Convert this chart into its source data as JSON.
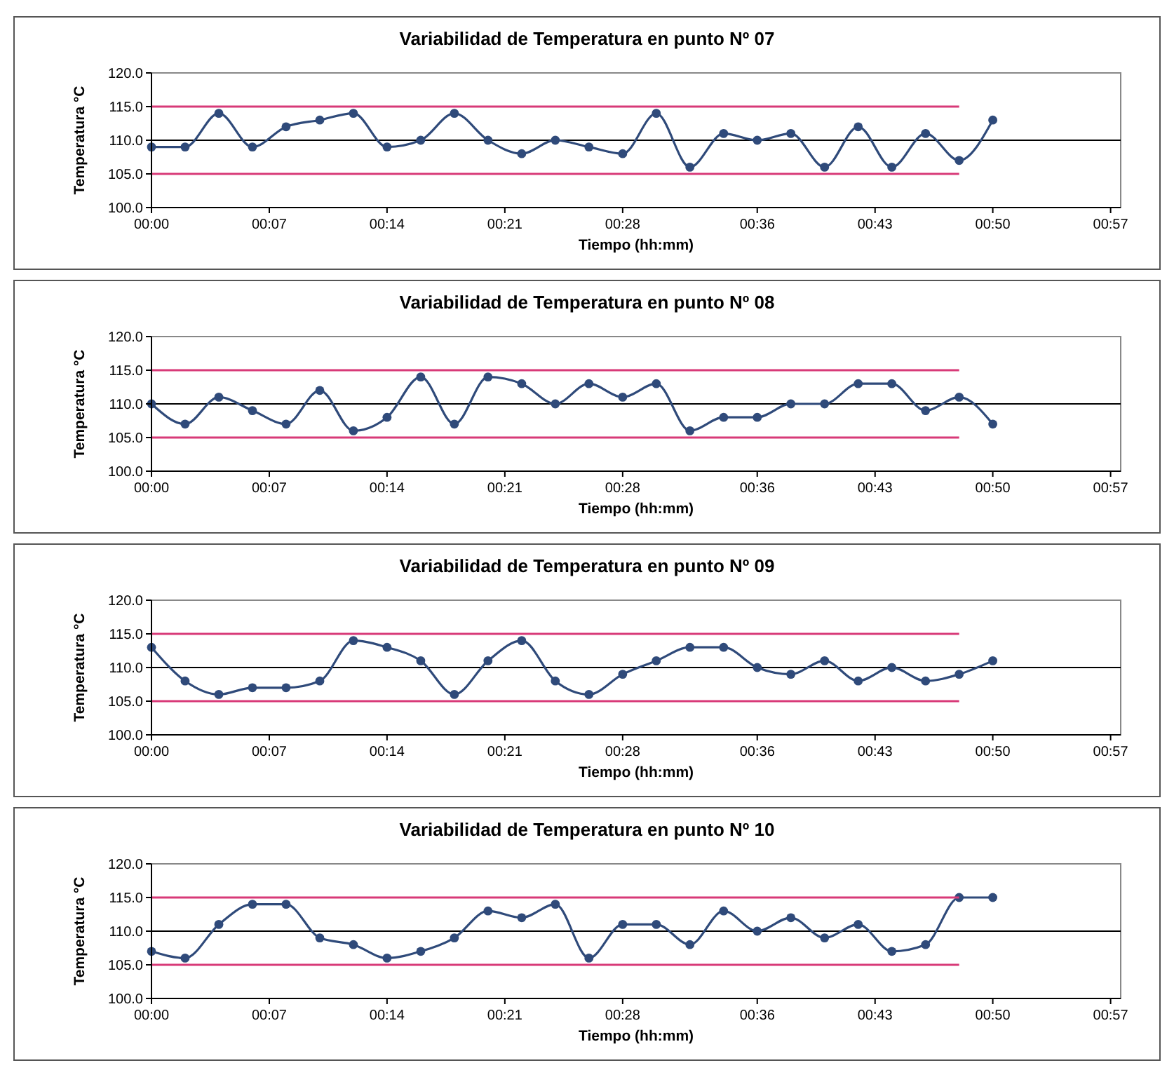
{
  "chart_data": [
    {
      "type": "line",
      "title": "Variabilidad de Temperatura en punto Nº 07",
      "xlabel": "Tiempo  (hh:mm)",
      "ylabel": "Temperatura °C",
      "xlim": [
        0,
        0.96
      ],
      "xticks": [
        {
          "value": 0,
          "label": "00:00"
        },
        {
          "value": 0.1167,
          "label": "00:07"
        },
        {
          "value": 0.2333,
          "label": "00:14"
        },
        {
          "value": 0.35,
          "label": "00:21"
        },
        {
          "value": 0.4667,
          "label": "00:28"
        },
        {
          "value": 0.6,
          "label": "00:36"
        },
        {
          "value": 0.7167,
          "label": "00:43"
        },
        {
          "value": 0.8333,
          "label": "00:50"
        },
        {
          "value": 0.95,
          "label": "00:57"
        }
      ],
      "ylim": [
        100,
        120
      ],
      "yticks": [
        {
          "value": 100,
          "label": "100.0"
        },
        {
          "value": 105,
          "label": "105.0"
        },
        {
          "value": 110,
          "label": "110.0"
        },
        {
          "value": 115,
          "label": "115.0"
        },
        {
          "value": 120,
          "label": "120.0"
        }
      ],
      "ref_lines": [
        {
          "axis": "y",
          "value": 110,
          "color": "#000000"
        }
      ],
      "series": [
        {
          "color": "#2f4a7a",
          "marker": "circle",
          "x": [
            0,
            0.0333,
            0.0667,
            0.1,
            0.1333,
            0.1667,
            0.2,
            0.2333,
            0.2667,
            0.3,
            0.3333,
            0.3667,
            0.4,
            0.4333,
            0.4667,
            0.5,
            0.5333,
            0.5667,
            0.6,
            0.6333,
            0.6667,
            0.7,
            0.7333,
            0.7667,
            0.8,
            0.8333
          ],
          "values": [
            109,
            109,
            114,
            109,
            112,
            113,
            114,
            109,
            110,
            114,
            110,
            108,
            110,
            109,
            108,
            114,
            106,
            111,
            110,
            111,
            106,
            112,
            106,
            111,
            107,
            113
          ]
        },
        {
          "color": "#d83a78",
          "marker": "none",
          "x": [
            0,
            0.8
          ],
          "values": [
            115,
            115
          ]
        },
        {
          "color": "#d83a78",
          "marker": "none",
          "x": [
            0,
            0.8
          ],
          "values": [
            105,
            105
          ]
        }
      ]
    },
    {
      "type": "line",
      "title": "Variabilidad de Temperatura en punto Nº 08",
      "xlabel": "Tiempo  (hh:mm)",
      "ylabel": "Temperatura °C",
      "xlim": [
        0,
        0.96
      ],
      "xticks": [
        {
          "value": 0,
          "label": "00:00"
        },
        {
          "value": 0.1167,
          "label": "00:07"
        },
        {
          "value": 0.2333,
          "label": "00:14"
        },
        {
          "value": 0.35,
          "label": "00:21"
        },
        {
          "value": 0.4667,
          "label": "00:28"
        },
        {
          "value": 0.6,
          "label": "00:36"
        },
        {
          "value": 0.7167,
          "label": "00:43"
        },
        {
          "value": 0.8333,
          "label": "00:50"
        },
        {
          "value": 0.95,
          "label": "00:57"
        }
      ],
      "ylim": [
        100,
        120
      ],
      "yticks": [
        {
          "value": 100,
          "label": "100.0"
        },
        {
          "value": 105,
          "label": "105.0"
        },
        {
          "value": 110,
          "label": "110.0"
        },
        {
          "value": 115,
          "label": "115.0"
        },
        {
          "value": 120,
          "label": "120.0"
        }
      ],
      "ref_lines": [
        {
          "axis": "y",
          "value": 110,
          "color": "#000000"
        }
      ],
      "series": [
        {
          "color": "#2f4a7a",
          "marker": "circle",
          "x": [
            0,
            0.0333,
            0.0667,
            0.1,
            0.1333,
            0.1667,
            0.2,
            0.2333,
            0.2667,
            0.3,
            0.3333,
            0.3667,
            0.4,
            0.4333,
            0.4667,
            0.5,
            0.5333,
            0.5667,
            0.6,
            0.6333,
            0.6667,
            0.7,
            0.7333,
            0.7667,
            0.8,
            0.8333
          ],
          "values": [
            110,
            107,
            111,
            109,
            107,
            112,
            106,
            108,
            114,
            107,
            114,
            113,
            110,
            113,
            111,
            113,
            106,
            108,
            108,
            110,
            110,
            113,
            113,
            109,
            111,
            107
          ]
        },
        {
          "color": "#d83a78",
          "marker": "none",
          "x": [
            0,
            0.8
          ],
          "values": [
            115,
            115
          ]
        },
        {
          "color": "#d83a78",
          "marker": "none",
          "x": [
            0,
            0.8
          ],
          "values": [
            105,
            105
          ]
        }
      ]
    },
    {
      "type": "line",
      "title": "Variabilidad de Temperatura en punto Nº 09",
      "xlabel": "Tiempo  (hh:mm)",
      "ylabel": "Temperatura °C",
      "xlim": [
        0,
        0.96
      ],
      "xticks": [
        {
          "value": 0,
          "label": "00:00"
        },
        {
          "value": 0.1167,
          "label": "00:07"
        },
        {
          "value": 0.2333,
          "label": "00:14"
        },
        {
          "value": 0.35,
          "label": "00:21"
        },
        {
          "value": 0.4667,
          "label": "00:28"
        },
        {
          "value": 0.6,
          "label": "00:36"
        },
        {
          "value": 0.7167,
          "label": "00:43"
        },
        {
          "value": 0.8333,
          "label": "00:50"
        },
        {
          "value": 0.95,
          "label": "00:57"
        }
      ],
      "ylim": [
        100,
        120
      ],
      "yticks": [
        {
          "value": 100,
          "label": "100.0"
        },
        {
          "value": 105,
          "label": "105.0"
        },
        {
          "value": 110,
          "label": "110.0"
        },
        {
          "value": 115,
          "label": "115.0"
        },
        {
          "value": 120,
          "label": "120.0"
        }
      ],
      "ref_lines": [
        {
          "axis": "y",
          "value": 110,
          "color": "#000000"
        }
      ],
      "series": [
        {
          "color": "#2f4a7a",
          "marker": "circle",
          "x": [
            0,
            0.0333,
            0.0667,
            0.1,
            0.1333,
            0.1667,
            0.2,
            0.2333,
            0.2667,
            0.3,
            0.3333,
            0.3667,
            0.4,
            0.4333,
            0.4667,
            0.5,
            0.5333,
            0.5667,
            0.6,
            0.6333,
            0.6667,
            0.7,
            0.7333,
            0.7667,
            0.8,
            0.8333
          ],
          "values": [
            113,
            108,
            106,
            107,
            107,
            108,
            114,
            113,
            111,
            106,
            111,
            114,
            108,
            106,
            109,
            111,
            113,
            113,
            110,
            109,
            111,
            108,
            110,
            108,
            109,
            111
          ]
        },
        {
          "color": "#d83a78",
          "marker": "none",
          "x": [
            0,
            0.8
          ],
          "values": [
            115,
            115
          ]
        },
        {
          "color": "#d83a78",
          "marker": "none",
          "x": [
            0,
            0.8
          ],
          "values": [
            105,
            105
          ]
        }
      ]
    },
    {
      "type": "line",
      "title": "Variabilidad de Temperatura en punto Nº 10",
      "xlabel": "Tiempo  (hh:mm)",
      "ylabel": "Temperatura °C",
      "xlim": [
        0,
        0.96
      ],
      "xticks": [
        {
          "value": 0,
          "label": "00:00"
        },
        {
          "value": 0.1167,
          "label": "00:07"
        },
        {
          "value": 0.2333,
          "label": "00:14"
        },
        {
          "value": 0.35,
          "label": "00:21"
        },
        {
          "value": 0.4667,
          "label": "00:28"
        },
        {
          "value": 0.6,
          "label": "00:36"
        },
        {
          "value": 0.7167,
          "label": "00:43"
        },
        {
          "value": 0.8333,
          "label": "00:50"
        },
        {
          "value": 0.95,
          "label": "00:57"
        }
      ],
      "ylim": [
        100,
        120
      ],
      "yticks": [
        {
          "value": 100,
          "label": "100.0"
        },
        {
          "value": 105,
          "label": "105.0"
        },
        {
          "value": 110,
          "label": "110.0"
        },
        {
          "value": 115,
          "label": "115.0"
        },
        {
          "value": 120,
          "label": "120.0"
        }
      ],
      "ref_lines": [
        {
          "axis": "y",
          "value": 110,
          "color": "#000000"
        }
      ],
      "series": [
        {
          "color": "#2f4a7a",
          "marker": "circle",
          "x": [
            0,
            0.0333,
            0.0667,
            0.1,
            0.1333,
            0.1667,
            0.2,
            0.2333,
            0.2667,
            0.3,
            0.3333,
            0.3667,
            0.4,
            0.4333,
            0.4667,
            0.5,
            0.5333,
            0.5667,
            0.6,
            0.6333,
            0.6667,
            0.7,
            0.7333,
            0.7667,
            0.8,
            0.8333
          ],
          "values": [
            107,
            106,
            111,
            114,
            114,
            109,
            108,
            106,
            107,
            109,
            113,
            112,
            114,
            106,
            111,
            111,
            108,
            113,
            110,
            112,
            109,
            111,
            107,
            108,
            115,
            115
          ]
        },
        {
          "color": "#d83a78",
          "marker": "none",
          "x": [
            0,
            0.8
          ],
          "values": [
            115,
            115
          ]
        },
        {
          "color": "#d83a78",
          "marker": "none",
          "x": [
            0,
            0.8
          ],
          "values": [
            105,
            105
          ]
        }
      ]
    }
  ]
}
